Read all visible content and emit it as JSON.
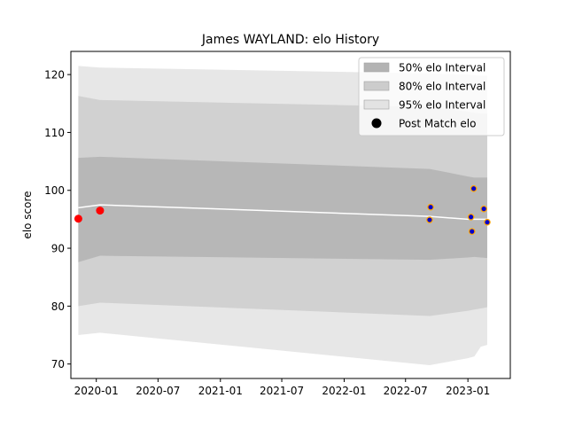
{
  "chart_data": {
    "type": "area",
    "title": "James WAYLAND: elo History",
    "xlabel": "",
    "ylabel": "elo score",
    "xlim": [
      "2019-10-18",
      "2023-05-06"
    ],
    "ylim": [
      67.5,
      124
    ],
    "x_ticks": [
      "2020-01",
      "2020-07",
      "2021-01",
      "2021-07",
      "2022-01",
      "2022-07",
      "2023-01"
    ],
    "y_ticks": [
      70,
      80,
      90,
      100,
      110,
      120
    ],
    "grid": false,
    "legend_position": "upper right",
    "colors": {
      "band_50": "#b3b3b3",
      "band_80": "#cccccc",
      "band_95": "#e3e3e3",
      "mean_line": "#ffffff",
      "point_early": "#ff0000",
      "point_late_fill": "#0000cc",
      "point_late_edge": "#ffa500",
      "legend_marker": "#000000"
    },
    "bands": {
      "dates": [
        "2019-11-09",
        "2020-01-12",
        "2022-09-10",
        "2023-01-01",
        "2023-01-20",
        "2023-02-08",
        "2023-02-27"
      ],
      "mean": [
        97.0,
        97.5,
        95.5,
        95.0,
        95.0,
        95.0,
        95.0
      ],
      "p50_low": [
        87.6,
        88.7,
        88.0,
        88.4,
        88.5,
        88.4,
        88.3
      ],
      "p50_high": [
        105.6,
        105.8,
        103.7,
        102.4,
        102.2,
        102.2,
        102.2
      ],
      "p80_low": [
        80.0,
        80.6,
        78.3,
        79.2,
        79.4,
        79.6,
        79.8
      ],
      "p80_high": [
        116.3,
        115.6,
        114.4,
        113.6,
        113.4,
        113.3,
        113.3
      ],
      "p95_low": [
        75.0,
        75.4,
        69.8,
        71.0,
        71.3,
        73.0,
        73.3
      ],
      "p95_high": [
        121.5,
        121.2,
        120.2,
        120.0,
        119.9,
        119.8,
        119.8
      ]
    },
    "points": [
      {
        "date": "2019-11-09",
        "elo": 95.1,
        "style": "early"
      },
      {
        "date": "2020-01-12",
        "elo": 96.5,
        "style": "early"
      },
      {
        "date": "2022-09-10",
        "elo": 94.9,
        "style": "late"
      },
      {
        "date": "2022-09-13",
        "elo": 97.1,
        "style": "late"
      },
      {
        "date": "2023-01-10",
        "elo": 95.4,
        "style": "late"
      },
      {
        "date": "2023-01-13",
        "elo": 92.9,
        "style": "late"
      },
      {
        "date": "2023-01-18",
        "elo": 100.3,
        "style": "late"
      },
      {
        "date": "2023-02-17",
        "elo": 96.8,
        "style": "late"
      },
      {
        "date": "2023-02-27",
        "elo": 94.5,
        "style": "late"
      }
    ],
    "legend": [
      {
        "label": "50% elo Interval",
        "kind": "band_50"
      },
      {
        "label": "80% elo Interval",
        "kind": "band_80"
      },
      {
        "label": "95% elo Interval",
        "kind": "band_95"
      },
      {
        "label": "Post Match elo",
        "kind": "marker"
      }
    ]
  }
}
